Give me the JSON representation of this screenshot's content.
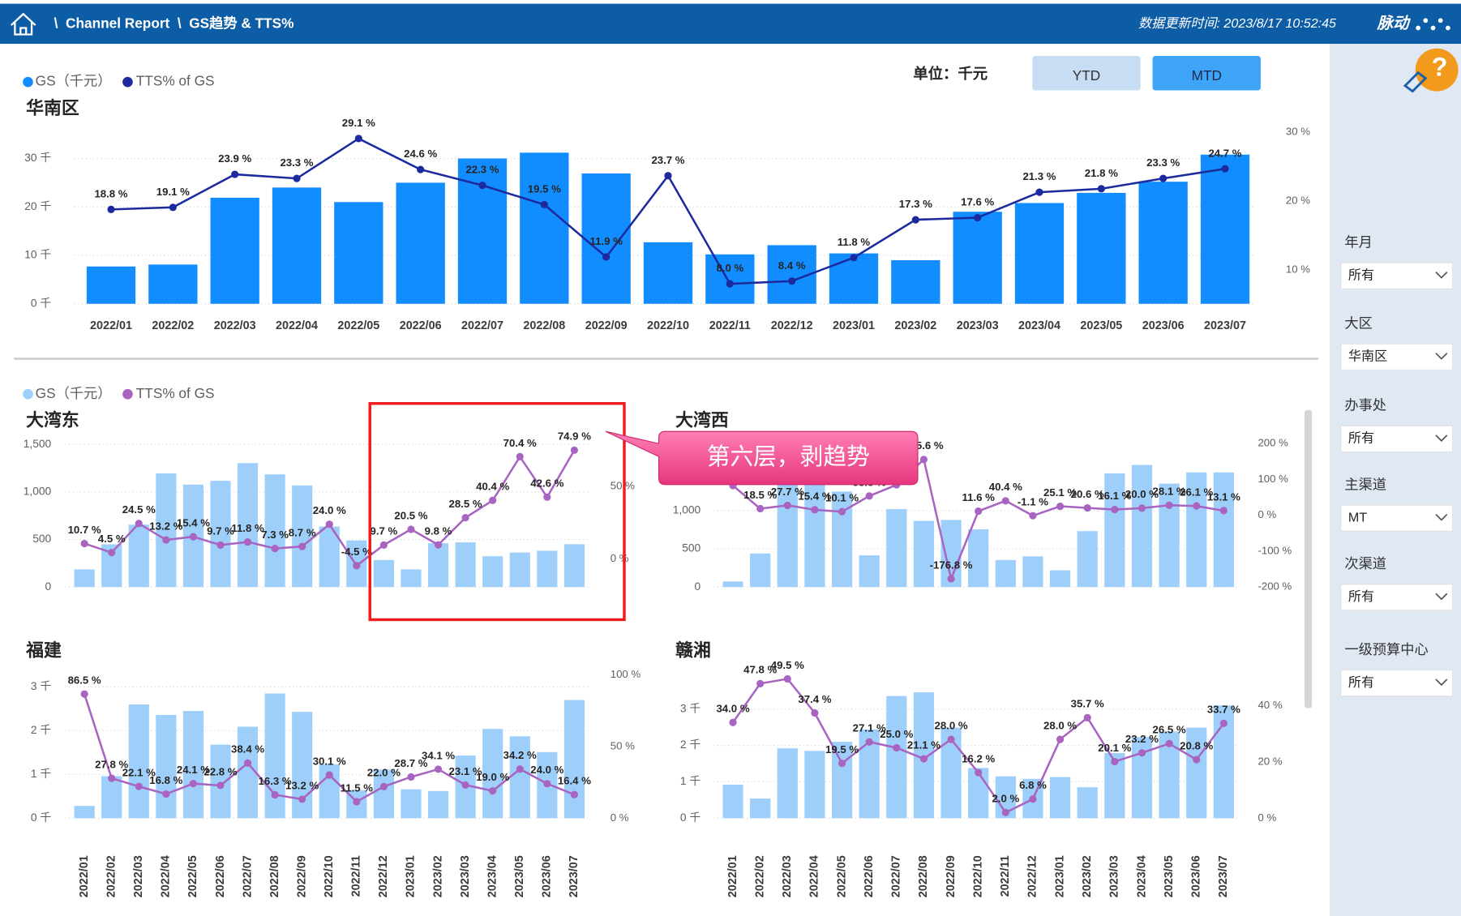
{
  "header": {
    "breadcrumb": "\\  Channel Report  \\  GS趋势 & TTS%",
    "update_time": "数据更新时间: 2023/8/17 10:52:45",
    "brand": "脉动"
  },
  "unit": "单位：千元",
  "buttons": [
    "YTD",
    "MTD"
  ],
  "help": "?",
  "annotation": "第六层，剥趋势",
  "filters": [
    {
      "label": "年月",
      "value": "所有"
    },
    {
      "label": "大区",
      "value": "华南区"
    },
    {
      "label": "办事处",
      "value": "所有"
    },
    {
      "label": "主渠道",
      "value": "MT"
    },
    {
      "label": "次渠道",
      "value": "所有"
    },
    {
      "label": "一级预算中心",
      "value": "所有"
    }
  ],
  "chart_data": [
    {
      "type": "combo",
      "title": "华南区",
      "categories": [
        "2022/01",
        "2022/02",
        "2022/03",
        "2022/04",
        "2022/05",
        "2022/06",
        "2022/07",
        "2022/08",
        "2022/09",
        "2022/10",
        "2022/11",
        "2022/12",
        "2023/01",
        "2023/02",
        "2023/03",
        "2023/04",
        "2023/05",
        "2023/06",
        "2023/07"
      ],
      "series": [
        {
          "name": "GS（千元）",
          "type": "bar",
          "color": "#118dff",
          "values": [
            7.7,
            8.1,
            21.9,
            24.0,
            21.0,
            25.0,
            30.0,
            31.2,
            26.9,
            12.7,
            10.2,
            12.1,
            10.4,
            9.0,
            19.0,
            20.8,
            22.9,
            25.2,
            30.8
          ]
        },
        {
          "name": "TTS% of GS",
          "type": "line",
          "axis": "y2",
          "color": "#1c2a9e",
          "values": [
            18.8,
            19.1,
            23.9,
            23.3,
            29.1,
            24.6,
            22.3,
            19.5,
            11.9,
            23.7,
            8.0,
            8.4,
            11.8,
            17.3,
            17.6,
            21.3,
            21.8,
            23.3,
            24.7
          ],
          "value_labels": [
            "18.8 %",
            "19.1 %",
            "23.9 %",
            "23.3 %",
            "29.1 %",
            "24.6 %",
            "22.3 %",
            "19.5 %",
            "11.9 %",
            "23.7 %",
            "8.0 %",
            "8.4 %",
            "11.8 %",
            "17.3 %",
            "17.6 %",
            "21.3 %",
            "21.8 %",
            "23.3 %",
            "24.7 %"
          ]
        }
      ],
      "ylim": [
        0,
        35.4
      ],
      "yticks": [
        {
          "value": 0,
          "label": "0 千"
        },
        {
          "value": 10,
          "label": "10 千"
        },
        {
          "value": 20,
          "label": "20 千"
        },
        {
          "value": 30,
          "label": "30 千"
        }
      ],
      "y2lim": [
        5.1,
        30
      ],
      "y2ticks": [
        {
          "value": 10,
          "label": "10 %"
        },
        {
          "value": 20,
          "label": "20 %"
        },
        {
          "value": 30,
          "label": "30 %"
        }
      ],
      "grid": true
    },
    {
      "type": "combo",
      "title": "大湾东",
      "series": [
        {
          "name": "GS（千元）",
          "type": "bar",
          "color": "#9dcffa",
          "values": [
            186,
            450,
            657,
            1196,
            1078,
            1118,
            1304,
            1186,
            1069,
            637,
            490,
            284,
            186,
            461,
            470,
            324,
            363,
            382,
            451
          ]
        },
        {
          "name": "TTS% of GS",
          "type": "line",
          "axis": "y2",
          "color": "#a864c0",
          "values": [
            10.7,
            4.5,
            24.5,
            13.2,
            15.4,
            9.7,
            11.8,
            7.3,
            8.7,
            24.0,
            -4.5,
            9.7,
            20.5,
            9.8,
            28.5,
            40.4,
            70.4,
            42.6,
            74.9
          ],
          "value_labels": [
            "10.7 %",
            "4.5 %",
            "24.5 %",
            "13.2 %",
            "15.4 %",
            "9.7 %",
            "11.8 %",
            "7.3 %",
            "8.7 %",
            "24.0 %",
            "-4.5 %",
            "9.7 %",
            "20.5 %",
            "9.8 %",
            "28.5 %",
            "40.4 %",
            "70.4 %",
            "42.6 %",
            "74.9 %"
          ]
        }
      ],
      "ylim": [
        0,
        1500
      ],
      "yticks": [
        0,
        500,
        {
          "value": 1000,
          "label": "1,000"
        },
        {
          "value": 1500,
          "label": "1,500"
        }
      ],
      "y2lim": [
        -19.2,
        78.8
      ],
      "y2ticks": [
        {
          "value": 0,
          "label": "0 %"
        },
        {
          "value": 50,
          "label": "50 %"
        }
      ],
      "grid": true
    },
    {
      "type": "combo",
      "title": "大湾西",
      "series": [
        {
          "name": "GS（千元）",
          "type": "bar",
          "color": "#9dcffa",
          "values": [
            73,
            439,
            1520,
            1500,
            1250,
            415,
            1020,
            866,
            878,
            756,
            354,
            402,
            220,
            732,
            1488,
            1598,
            1354,
            1500,
            1500
          ]
        },
        {
          "name": "TTS% of GS",
          "type": "line",
          "axis": "y2",
          "color": "#a864c0",
          "values": [
            83.0,
            18.5,
            27.7,
            15.4,
            10.1,
            53.8,
            85.0,
            155.6,
            -176.8,
            11.6,
            40.4,
            -1.1,
            25.1,
            20.6,
            16.1,
            20.0,
            28.1,
            26.1,
            13.1
          ],
          "value_labels": [
            null,
            "18.5 %",
            "27.7 %",
            "15.4 %",
            "10.1 %",
            "53.8 %",
            null,
            "155.6 %",
            "-176.8 %",
            "11.6 %",
            "40.4 %",
            "-1.1 %",
            "25.1 %",
            "20.6 %",
            "16.1 %",
            "20.0 %",
            "28.1 %",
            "26.1 %",
            "13.1 %"
          ]
        }
      ],
      "ylim": [
        0,
        1878
      ],
      "yticks": [
        0,
        500,
        {
          "value": 1000,
          "label": "1,000"
        }
      ],
      "y2lim": [
        -200,
        200
      ],
      "y2ticks": [
        {
          "value": -200,
          "label": "-200 %"
        },
        {
          "value": -100,
          "label": "-100 %"
        },
        {
          "value": 0,
          "label": "0 %"
        },
        {
          "value": 100,
          "label": "100 %"
        },
        {
          "value": 200,
          "label": "200 %"
        }
      ],
      "grid": true
    },
    {
      "type": "combo",
      "title": "福建",
      "categories": [
        "2022/01",
        "2022/02",
        "2022/03",
        "2022/04",
        "2022/05",
        "2022/06",
        "2022/07",
        "2022/08",
        "2022/09",
        "2022/10",
        "2022/11",
        "2022/12",
        "2023/01",
        "2023/02",
        "2023/03",
        "2023/04",
        "2023/05",
        "2023/06",
        "2023/07"
      ],
      "series": [
        {
          "name": "GS（千元）",
          "type": "bar",
          "color": "#9dcffa",
          "values": [
            0.28,
            0.96,
            2.6,
            2.36,
            2.45,
            1.68,
            2.09,
            2.85,
            2.43,
            1.23,
            0.64,
            1.11,
            0.66,
            0.62,
            1.43,
            2.04,
            1.87,
            1.51,
            2.7
          ]
        },
        {
          "name": "TTS% of GS",
          "type": "line",
          "axis": "y2",
          "color": "#a864c0",
          "values": [
            86.5,
            27.8,
            22.1,
            16.8,
            24.1,
            22.8,
            38.4,
            16.3,
            13.2,
            30.1,
            11.5,
            22.0,
            28.7,
            34.1,
            23.1,
            19.0,
            34.2,
            24.0,
            16.4
          ],
          "value_labels": [
            "86.5 %",
            "27.8 %",
            "22.1 %",
            "16.8 %",
            "24.1 %",
            "22.8 %",
            "38.4 %",
            "16.3 %",
            "13.2 %",
            "30.1 %",
            "11.5 %",
            "22.0 %",
            "28.7 %",
            "34.1 %",
            "23.1 %",
            "19.0 %",
            "34.2 %",
            "24.0 %",
            "16.4 %"
          ]
        }
      ],
      "ylim": [
        0,
        3.28
      ],
      "yticks": [
        {
          "value": 0,
          "label": "0 千"
        },
        {
          "value": 1,
          "label": "1 千"
        },
        {
          "value": 2,
          "label": "2 千"
        },
        {
          "value": 3,
          "label": "3 千"
        }
      ],
      "y2lim": [
        0,
        100
      ],
      "y2ticks": [
        {
          "value": 0,
          "label": "0 %"
        },
        {
          "value": 50,
          "label": "50 %"
        },
        {
          "value": 100,
          "label": "100 %"
        }
      ],
      "grid": true
    },
    {
      "type": "combo",
      "title": "赣湘",
      "categories": [
        "2022/01",
        "2022/02",
        "2022/03",
        "2022/04",
        "2022/05",
        "2022/06",
        "2022/07",
        "2022/08",
        "2022/09",
        "2022/10",
        "2022/11",
        "2022/12",
        "2023/01",
        "2023/02",
        "2023/03",
        "2023/04",
        "2023/05",
        "2023/06",
        "2023/07"
      ],
      "series": [
        {
          "name": "GS（千元）",
          "type": "bar",
          "color": "#9dcffa",
          "values": [
            0.92,
            0.54,
            1.92,
            1.85,
            2.1,
            2.44,
            3.36,
            3.46,
            2.49,
            1.38,
            1.15,
            1.08,
            1.13,
            0.85,
            1.79,
            2.23,
            2.38,
            2.49,
            3.1
          ]
        },
        {
          "name": "TTS% of GS",
          "type": "line",
          "axis": "y2",
          "color": "#a864c0",
          "values": [
            34.0,
            47.8,
            49.5,
            37.4,
            19.5,
            27.1,
            25.0,
            21.1,
            28.0,
            16.2,
            2.0,
            6.8,
            28.0,
            35.7,
            20.1,
            23.2,
            26.5,
            20.8,
            33.7
          ],
          "value_labels": [
            "34.0 %",
            "47.8 %",
            "49.5 %",
            "37.4 %",
            "19.5 %",
            "27.1 %",
            "25.0 %",
            "21.1 %",
            "28.0 %",
            "16.2 %",
            "2.0 %",
            "6.8 %",
            "28.0 %",
            "35.7 %",
            "20.1 %",
            "23.2 %",
            "26.5 %",
            "20.8 %",
            "33.7 %"
          ]
        }
      ],
      "ylim": [
        0,
        3.87
      ],
      "yticks": [
        {
          "value": 0,
          "label": "0 千"
        },
        {
          "value": 1,
          "label": "1 千"
        },
        {
          "value": 2,
          "label": "2 千"
        },
        {
          "value": 3,
          "label": "3 千"
        }
      ],
      "y2lim": [
        0,
        50
      ],
      "y2ticks": [
        {
          "value": 0,
          "label": "0 %"
        },
        {
          "value": 20,
          "label": "20 %"
        },
        {
          "value": 40,
          "label": "40 %"
        }
      ],
      "grid": true
    }
  ]
}
